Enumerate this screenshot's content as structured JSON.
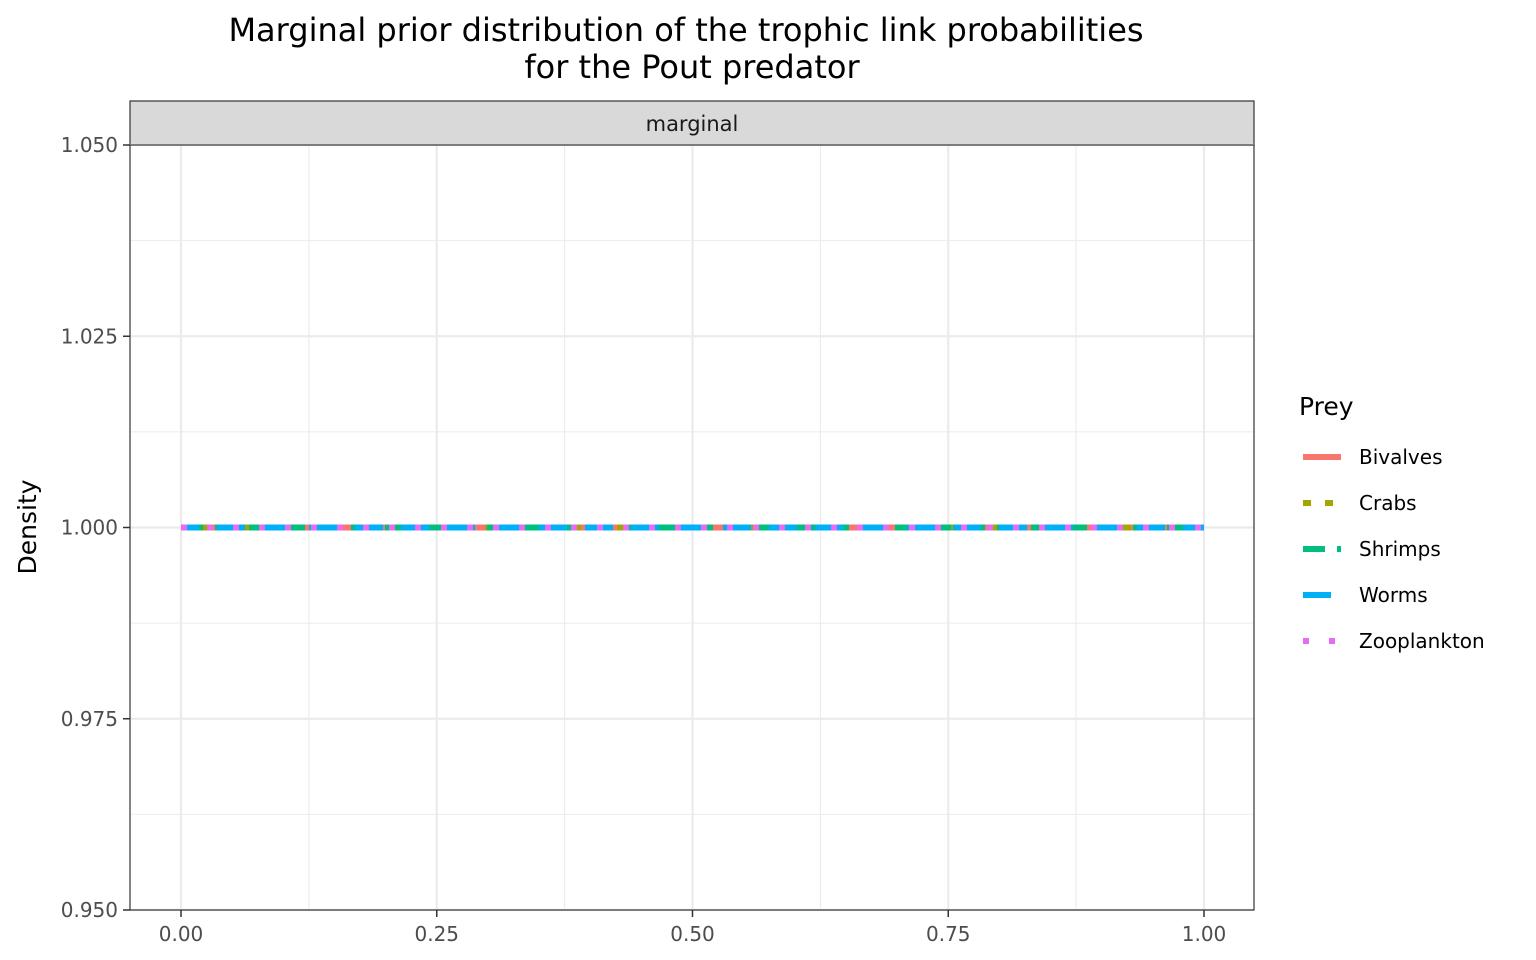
{
  "chart_data": {
    "type": "line",
    "title": [
      "Marginal prior distribution of the trophic link probabilities",
      "for the Pout predator"
    ],
    "facet": "marginal",
    "xlabel": "",
    "ylabel": "Density",
    "xlim": [
      0,
      1
    ],
    "ylim": [
      0.95,
      1.05
    ],
    "x_ticks": [
      0,
      0.25,
      0.5,
      0.75,
      1.0
    ],
    "x_tick_labels": [
      "0.00",
      "0.25",
      "0.50",
      "0.75",
      "1.00"
    ],
    "y_ticks": [
      0.95,
      0.975,
      1.0,
      1.025,
      1.05
    ],
    "y_tick_labels": [
      "0.950",
      "0.975",
      "1.000",
      "1.025",
      "1.050"
    ],
    "grid": true,
    "legend_title": "Prey",
    "legend_position": "right",
    "series": [
      {
        "name": "Bivalves",
        "color": "#F8766D",
        "linetype": "solid",
        "x": [
          0,
          1
        ],
        "y": [
          1.0,
          1.0
        ]
      },
      {
        "name": "Crabs",
        "color": "#A3A500",
        "linetype": "dashed",
        "x": [
          0,
          1
        ],
        "y": [
          1.0,
          1.0
        ]
      },
      {
        "name": "Shrimps",
        "color": "#00BF7D",
        "linetype": "longdash",
        "x": [
          0,
          1
        ],
        "y": [
          1.0,
          1.0
        ]
      },
      {
        "name": "Worms",
        "color": "#00B0F6",
        "linetype": "longdash2",
        "x": [
          0,
          1
        ],
        "y": [
          1.0,
          1.0
        ]
      },
      {
        "name": "Zooplankton",
        "color": "#E76BF3",
        "linetype": "dotted",
        "x": [
          0,
          1
        ],
        "y": [
          1.0,
          1.0
        ]
      }
    ]
  }
}
